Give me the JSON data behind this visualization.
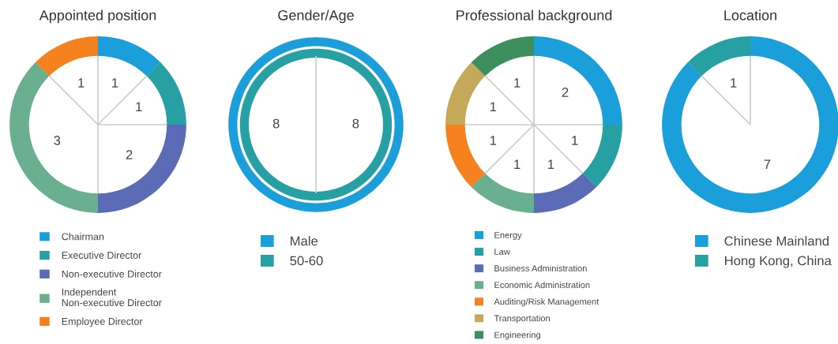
{
  "chart_data": [
    {
      "type": "donut",
      "title": "Appointed position",
      "categories": [
        "Chairman",
        "Executive Director",
        "Non-executive Director",
        "Independent\nNon-executive Director",
        "Employee Director"
      ],
      "values": [
        1,
        1,
        2,
        3,
        1
      ],
      "colors": [
        "#1a9fdb",
        "#26a0a3",
        "#5b6bb5",
        "#6aaf8f",
        "#f5821f"
      ],
      "data_labels": true,
      "legend": "bottom"
    },
    {
      "type": "donut",
      "title": "Gender/Age",
      "series": [
        {
          "name": "50-60",
          "color": "#26a0a3",
          "values": [
            8
          ]
        },
        {
          "name": "Male",
          "color": "#1a9fdb",
          "values": [
            8
          ]
        }
      ],
      "data_labels": true,
      "legend": "bottom"
    },
    {
      "type": "donut",
      "title": "Professional background",
      "categories": [
        "Energy",
        "Law",
        "Business Administration",
        "Economic Administration",
        "Auditing/Risk Management",
        "Transportation",
        "Engineering"
      ],
      "values": [
        2,
        1,
        1,
        1,
        1,
        1,
        1
      ],
      "colors": [
        "#1a9fdb",
        "#26a0a3",
        "#5b6bb5",
        "#6aaf8f",
        "#f5821f",
        "#c4a95a",
        "#3d8f5e"
      ],
      "data_labels": true,
      "legend": "bottom"
    },
    {
      "type": "donut",
      "title": "Location",
      "categories": [
        "Chinese Mainland",
        "Hong Kong, China"
      ],
      "values": [
        7,
        1
      ],
      "colors": [
        "#1a9fdb",
        "#26a0a3"
      ],
      "data_labels": true,
      "legend": "bottom"
    }
  ]
}
